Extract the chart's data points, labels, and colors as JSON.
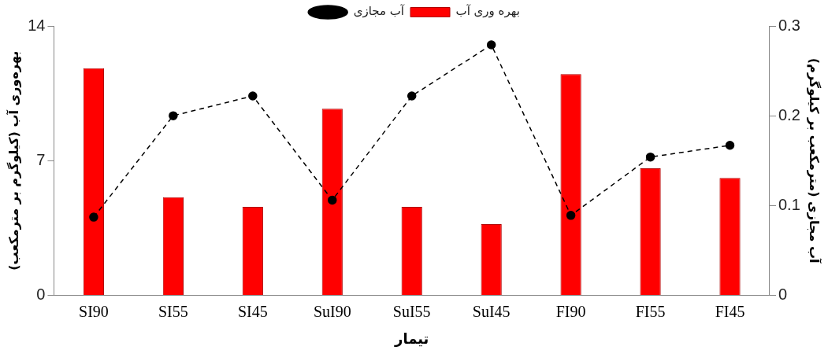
{
  "chart_data": {
    "type": "bar",
    "xlabel": "تیمار",
    "ylabel": "بهره‌وری آب (کیلوگرم بر مترمکعب)",
    "y2label": "آب مجازی (مترمکعب بر کیلوگرم)",
    "categories": [
      "SI90",
      "SI55",
      "SI45",
      "SuI90",
      "SuI55",
      "SuI45",
      "FI90",
      "FI55",
      "FI45"
    ],
    "series": [
      {
        "name": "بهره وری آب",
        "color": "#ff0000",
        "values": [
          11.8,
          5.1,
          4.6,
          9.7,
          4.6,
          3.7,
          11.5,
          6.6,
          6.1
        ]
      },
      {
        "name": "آب مجازی",
        "type": "line",
        "axis": "y2",
        "color": "#000000",
        "line_style": "dashed",
        "marker": "circle",
        "values": [
          0.087,
          0.2,
          0.222,
          0.106,
          0.222,
          0.279,
          0.089,
          0.154,
          0.167
        ]
      }
    ],
    "ylim": [
      0,
      14
    ],
    "yticks": [
      0,
      7,
      14
    ],
    "y2lim": [
      0,
      0.3
    ],
    "y2ticks": [
      0,
      0.1,
      0.2,
      0.3
    ],
    "grid": false,
    "legend": "top"
  }
}
